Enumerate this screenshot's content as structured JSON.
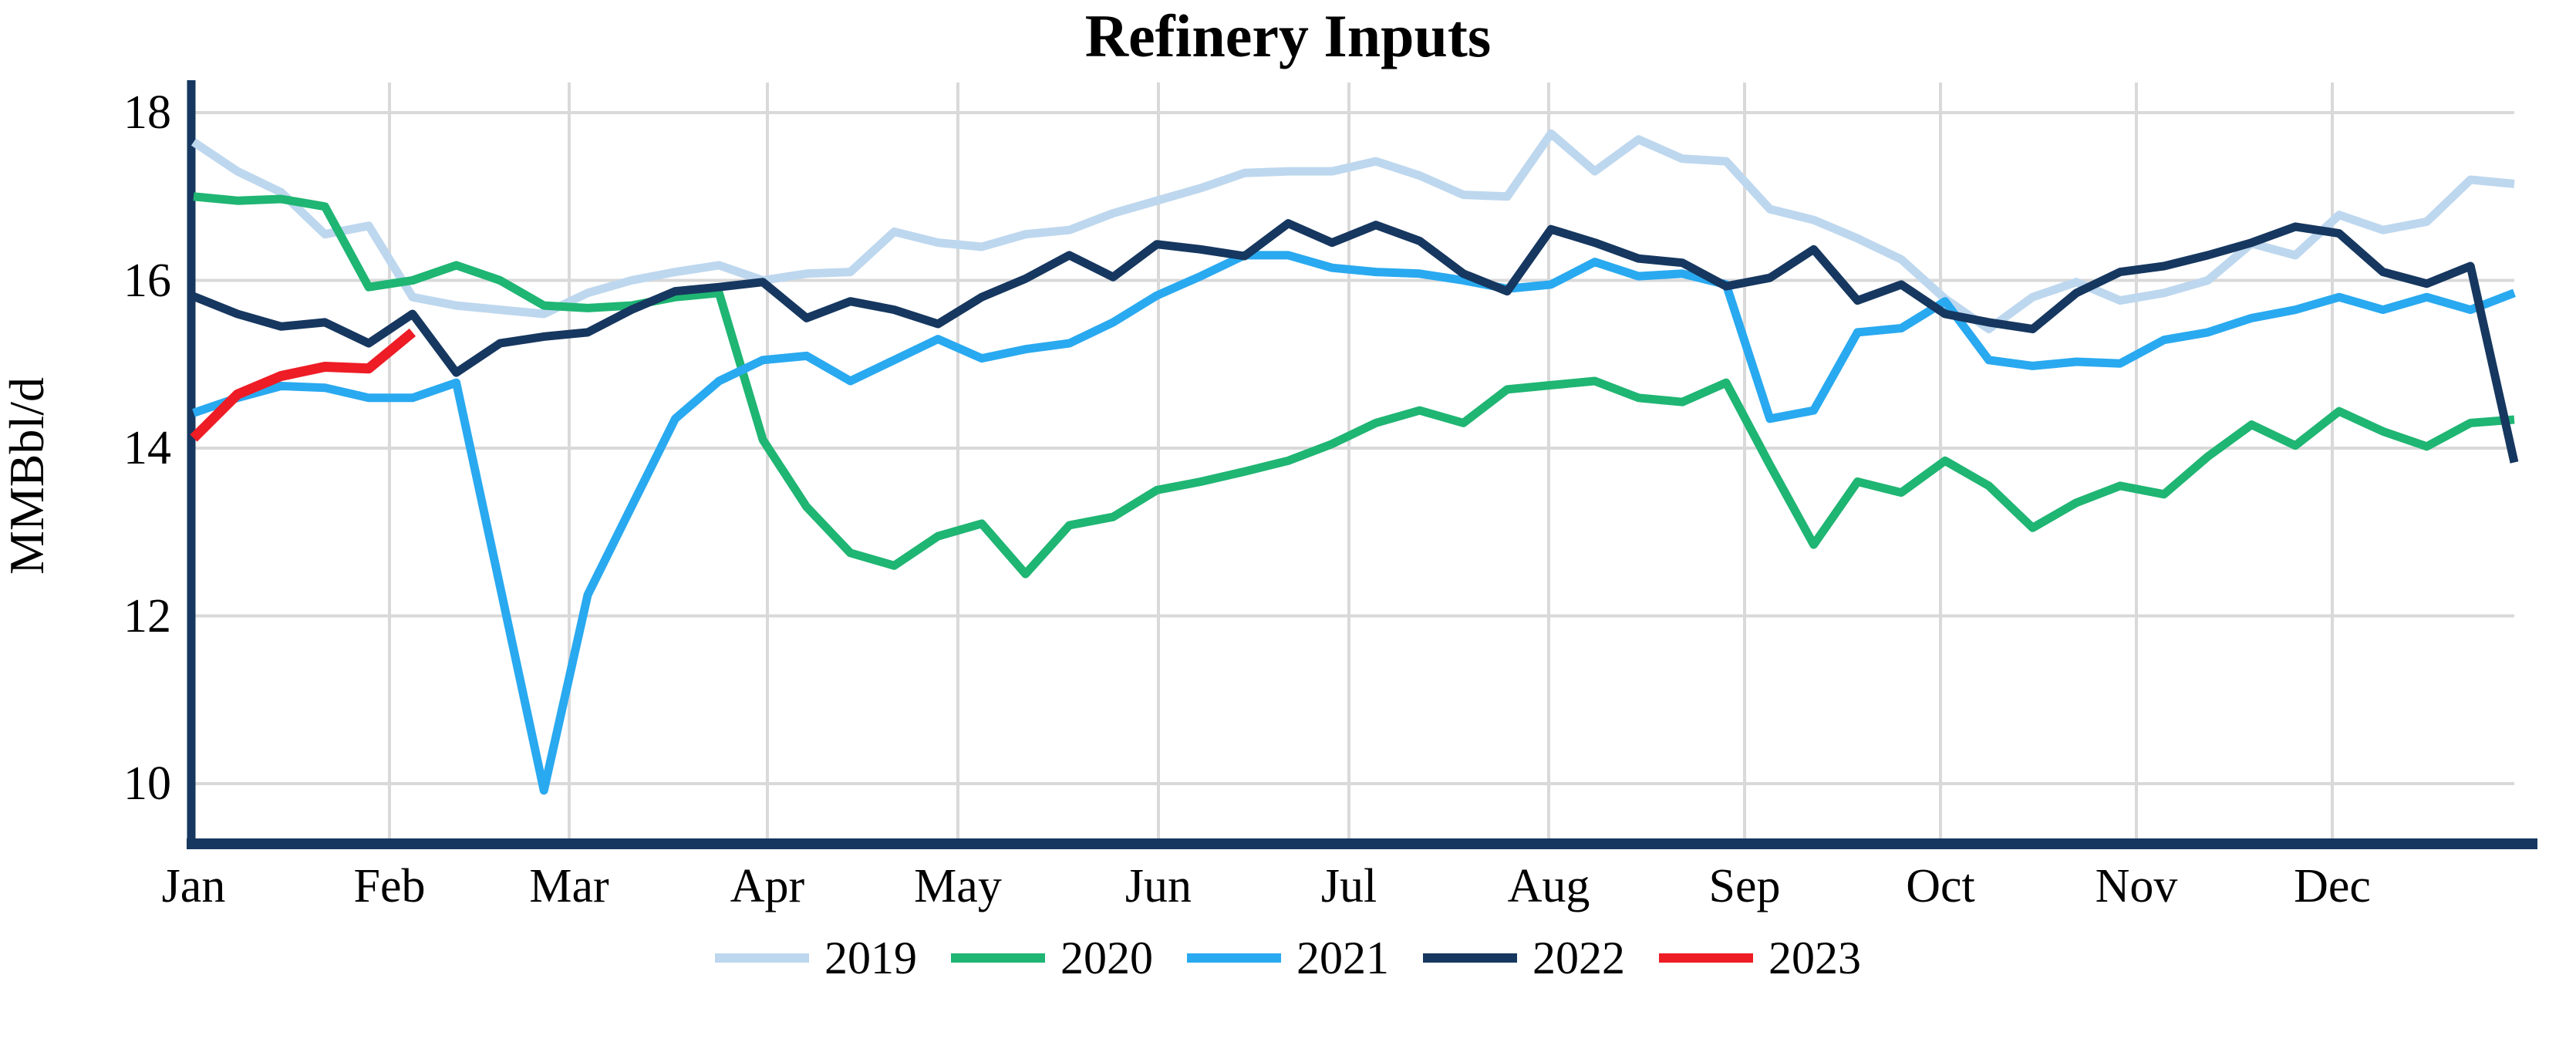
{
  "chart_data": {
    "type": "line",
    "title": "Refinery Inputs",
    "ylabel": "MMBbl/d",
    "xlabel": "",
    "x_unit": "weekly values, Jan through Dec",
    "x_tick_labels": [
      "Jan",
      "Feb",
      "Mar",
      "Apr",
      "May",
      "Jun",
      "Jul",
      "Aug",
      "Sep",
      "Oct",
      "Nov",
      "Dec"
    ],
    "y_ticks": [
      10,
      12,
      14,
      16,
      18
    ],
    "ylim": [
      9.1,
      18.4
    ],
    "grid": true,
    "legend_position": "bottom-center",
    "series": [
      {
        "name": "2019",
        "color": "#bdd7ee",
        "values": [
          17.65,
          17.3,
          17.05,
          16.55,
          16.65,
          15.8,
          15.7,
          15.65,
          15.6,
          15.85,
          16.0,
          16.1,
          16.18,
          16.0,
          16.08,
          16.1,
          16.58,
          16.45,
          16.4,
          16.55,
          16.6,
          16.8,
          16.95,
          17.1,
          17.28,
          17.3,
          17.3,
          17.42,
          17.25,
          17.02,
          17.0,
          17.75,
          17.3,
          17.68,
          17.45,
          17.42,
          16.85,
          16.72,
          16.5,
          16.25,
          15.78,
          15.42,
          15.8,
          15.98,
          15.76,
          15.85,
          16.0,
          16.44,
          16.3,
          16.78,
          16.6,
          16.7,
          17.2,
          17.15
        ]
      },
      {
        "name": "2020",
        "color": "#1fb573",
        "values": [
          17.0,
          16.95,
          16.97,
          16.88,
          15.92,
          16.0,
          16.18,
          16.0,
          15.7,
          15.67,
          15.7,
          15.8,
          15.85,
          14.1,
          13.3,
          12.75,
          12.6,
          12.95,
          13.1,
          12.5,
          13.08,
          13.18,
          13.5,
          13.6,
          13.72,
          13.85,
          14.05,
          14.3,
          14.45,
          14.3,
          14.7,
          14.75,
          14.8,
          14.6,
          14.55,
          14.78,
          13.8,
          12.85,
          13.6,
          13.47,
          13.85,
          13.55,
          13.05,
          13.35,
          13.55,
          13.45,
          13.9,
          14.28,
          14.03,
          14.44,
          14.2,
          14.02,
          14.3,
          14.34
        ]
      },
      {
        "name": "2021",
        "color": "#29a9f0",
        "values": [
          14.42,
          14.6,
          14.74,
          14.72,
          14.6,
          14.6,
          14.78,
          12.35,
          9.92,
          12.25,
          13.3,
          14.35,
          14.8,
          15.05,
          15.1,
          14.8,
          15.05,
          15.3,
          15.07,
          15.18,
          15.25,
          15.5,
          15.82,
          16.05,
          16.3,
          16.3,
          16.15,
          16.1,
          16.08,
          16.0,
          15.9,
          15.95,
          16.22,
          16.05,
          16.08,
          15.95,
          14.35,
          14.45,
          15.38,
          15.43,
          15.75,
          15.05,
          14.98,
          15.03,
          15.01,
          15.29,
          15.38,
          15.55,
          15.65,
          15.8,
          15.65,
          15.8,
          15.65,
          15.85
        ]
      },
      {
        "name": "2022",
        "color": "#16375f",
        "values": [
          15.81,
          15.6,
          15.45,
          15.5,
          15.25,
          15.6,
          14.9,
          15.25,
          15.33,
          15.38,
          15.65,
          15.87,
          15.92,
          15.98,
          15.55,
          15.75,
          15.65,
          15.48,
          15.8,
          16.02,
          16.3,
          16.04,
          16.43,
          16.37,
          16.29,
          16.68,
          16.45,
          16.66,
          16.47,
          16.08,
          15.87,
          16.61,
          16.45,
          16.26,
          16.21,
          15.93,
          16.03,
          16.37,
          15.76,
          15.95,
          15.6,
          15.5,
          15.42,
          15.85,
          16.1,
          16.17,
          16.3,
          16.45,
          16.64,
          16.56,
          16.1,
          15.96,
          16.17,
          13.83
        ]
      },
      {
        "name": "2023",
        "color": "#ee1c25",
        "values": [
          14.12,
          14.64,
          14.86,
          14.97,
          14.95,
          15.38
        ]
      }
    ]
  },
  "styles": {
    "background": "#ffffff",
    "axis_color": "#16375f",
    "grid_color": "#d9d9d9",
    "text_color": "#000000"
  }
}
